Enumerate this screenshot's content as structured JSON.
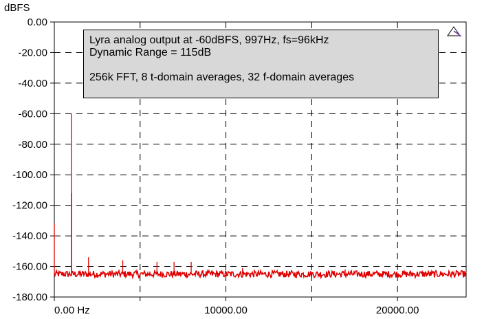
{
  "chart_data": {
    "type": "line",
    "ylabel": "dBFS",
    "xlabel": "",
    "xlim": [
      0,
      24000
    ],
    "ylim": [
      -180,
      0
    ],
    "y_ticks": [
      0,
      -20,
      -40,
      -60,
      -80,
      -100,
      -120,
      -140,
      -160,
      -180
    ],
    "y_tick_labels": [
      "0.00",
      "-20.00",
      "-40.00",
      "-60.00",
      "-80.00",
      "-100.00",
      "-120.00",
      "-140.00",
      "-160.00",
      "-180.00"
    ],
    "x_ticks": [
      0,
      10000,
      20000
    ],
    "x_tick_labels": [
      "0.00 Hz",
      "10000.00",
      "20000.00"
    ],
    "grid": "dashed",
    "line_color": "#e00000",
    "noise_floor_db": -165,
    "series": [
      {
        "peaks": [
          {
            "x": 0,
            "y": -132
          },
          {
            "x": 997,
            "y": -60
          },
          {
            "x": 1010,
            "y": -112
          },
          {
            "x": 1994,
            "y": -154
          },
          {
            "x": 3988,
            "y": -156
          },
          {
            "x": 5982,
            "y": -157
          },
          {
            "x": 6979,
            "y": -157
          },
          {
            "x": 7976,
            "y": -157
          },
          {
            "x": 10967,
            "y": -161
          },
          {
            "x": 16950,
            "y": -162
          }
        ]
      }
    ]
  },
  "annotation": {
    "line1": "Lyra analog output at -60dBFS, 997Hz, fs=96kHz",
    "line2": "Dynamic Range = 115dB",
    "line3": "256k FFT, 8 t-domain averages, 32 f-domain averages"
  }
}
